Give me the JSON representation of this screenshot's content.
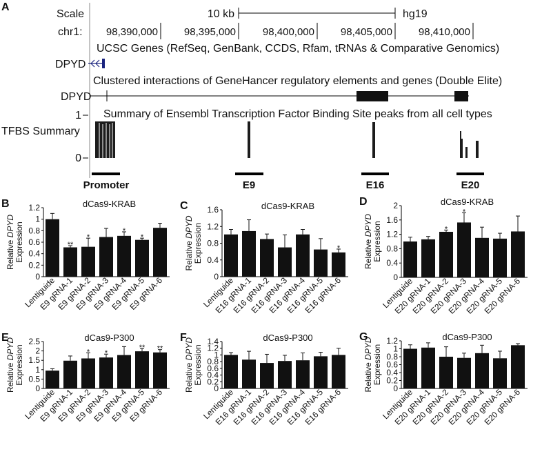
{
  "genome_browser": {
    "panel_label": "A",
    "scale_label": "Scale",
    "scale_value": "10 kb",
    "assembly": "hg19",
    "chrom_label": "chr1:",
    "coordinates": [
      "98,390,000",
      "98,395,000",
      "98,400,000",
      "98,405,000",
      "98,410,000"
    ],
    "ucsc_title": "UCSC Genes (RefSeq, GenBank, CCDS, Rfam, tRNAs & Comparative Genomics)",
    "ucsc_gene": "DPYD",
    "genehancer_title": "Clustered interactions of GeneHancer regulatory elements and genes (Double Elite)",
    "genehancer_gene": "DPYD",
    "tfbs_axis_top": "1",
    "tfbs_axis_bottom": "0",
    "tfbs_title": "Summary of Ensembl Transcription Factor Binding Site peaks from all cell types",
    "tfbs_label": "TFBS Summary",
    "regions": [
      "Promoter",
      "E9",
      "E16",
      "E20"
    ]
  },
  "chart_data": [
    {
      "panel": "B",
      "type": "bar",
      "title": "dCas9-KRAB",
      "ylabel": "Relative DPYD Expression",
      "ylim": [
        0,
        1.2
      ],
      "yticks": [
        "0",
        "0.2",
        "0.4",
        "0.6",
        "0.8",
        "1",
        "1.2"
      ],
      "categories": [
        "Lentiguide",
        "E9 gRNA-1",
        "E9 gRNA-2",
        "E9 gRNA-3",
        "E9 gRNA-4",
        "E9 gRNA-5",
        "E9 gRNA-6"
      ],
      "values": [
        1.0,
        0.51,
        0.52,
        0.69,
        0.71,
        0.64,
        0.85
      ],
      "errors": [
        0.1,
        0.03,
        0.15,
        0.15,
        0.07,
        0.03,
        0.08
      ],
      "significance": [
        "",
        "**",
        "*",
        "",
        "*",
        "*",
        ""
      ]
    },
    {
      "panel": "C",
      "type": "bar",
      "title": "dCas9-KRAB",
      "ylabel": "Relative DPYD Expression",
      "ylim": [
        0,
        1.6
      ],
      "yticks": [
        "0",
        "0.4",
        "0.8",
        "1.2",
        "1.6"
      ],
      "categories": [
        "Lentiguide",
        "E16 gRNA-1",
        "E16 gRNA-2",
        "E16 gRNA-3",
        "E16 gRNA-4",
        "E16 gRNA-5",
        "E16 gRNA-6"
      ],
      "values": [
        1.01,
        1.09,
        0.9,
        0.7,
        1.01,
        0.65,
        0.58
      ],
      "errors": [
        0.12,
        0.27,
        0.12,
        0.3,
        0.12,
        0.26,
        0.08
      ],
      "significance": [
        "",
        "",
        "",
        "",
        "",
        "",
        "*"
      ]
    },
    {
      "panel": "D",
      "type": "bar",
      "title": "dCas9-KRAB",
      "ylabel": "Relative DPYD Expression",
      "ylim": [
        0,
        2
      ],
      "yticks": [
        "0",
        "0.4",
        "0.8",
        "1.2",
        "1.6",
        "2"
      ],
      "categories": [
        "Lentiguide",
        "E20 gRNA-1",
        "E20 gRNA-2",
        "E20 gRNA-3",
        "E20 gRNA-4",
        "E20 gRNA-5",
        "E20 gRNA-6"
      ],
      "values": [
        1.0,
        1.06,
        1.27,
        1.53,
        1.1,
        1.08,
        1.28
      ],
      "errors": [
        0.12,
        0.08,
        0.05,
        0.27,
        0.3,
        0.15,
        0.43
      ],
      "significance": [
        "",
        "",
        "*",
        "*",
        "",
        "",
        ""
      ]
    },
    {
      "panel": "E",
      "type": "bar",
      "title": "dCas9-P300",
      "ylabel": "Relative DPYD Expression",
      "ylim": [
        0,
        2.5
      ],
      "yticks": [
        "0",
        "0.5",
        "1",
        "1.5",
        "2",
        "2.5"
      ],
      "categories": [
        "Lentiguide",
        "E9 gRNA-1",
        "E9 gRNA-2",
        "E9 gRNA-3",
        "E9 gRNA-4",
        "E9 gRNA-5",
        "E9 gRNA-6"
      ],
      "values": [
        0.95,
        1.48,
        1.6,
        1.65,
        1.78,
        1.98,
        1.92
      ],
      "errors": [
        0.1,
        0.25,
        0.3,
        0.18,
        0.45,
        0.15,
        0.15
      ],
      "significance": [
        "",
        "",
        "*",
        "*",
        "",
        "**",
        "**"
      ]
    },
    {
      "panel": "F",
      "type": "bar",
      "title": "dCas9-P300",
      "ylabel": "Relative DPYD Expression",
      "ylim": [
        0,
        1.4
      ],
      "yticks": [
        "0",
        "0.2",
        "0.4",
        "0.6",
        "0.8",
        "1",
        "1.2",
        "1.4"
      ],
      "categories": [
        "Lentiguide",
        "E16 gRNA-1",
        "E16 gRNA-2",
        "E16 gRNA-3",
        "E16 gRNA-4",
        "E16 gRNA-5",
        "E16 gRNA-6"
      ],
      "values": [
        1.0,
        0.86,
        0.76,
        0.82,
        0.84,
        0.96,
        1.0
      ],
      "errors": [
        0.07,
        0.25,
        0.26,
        0.17,
        0.22,
        0.12,
        0.2
      ],
      "significance": [
        "",
        "",
        "",
        "",
        "",
        "",
        ""
      ]
    },
    {
      "panel": "G",
      "type": "bar",
      "title": "dCas9-P300",
      "ylabel": "Relative DPYD Expression",
      "ylim": [
        0,
        1.2
      ],
      "yticks": [
        "0",
        "0.2",
        "0.4",
        "0.6",
        "0.8",
        "1",
        "1.2"
      ],
      "categories": [
        "Lentiguide",
        "E20 gRNA-1",
        "E20 gRNA-2",
        "E20 gRNA-3",
        "E20 gRNA-4",
        "E20 gRNA-5",
        "E20 gRNA-6"
      ],
      "values": [
        1.0,
        1.03,
        0.8,
        0.77,
        0.89,
        0.76,
        1.09
      ],
      "errors": [
        0.1,
        0.12,
        0.25,
        0.12,
        0.2,
        0.18,
        0.04
      ],
      "significance": [
        "",
        "",
        "",
        "",
        "",
        "",
        ""
      ]
    }
  ]
}
